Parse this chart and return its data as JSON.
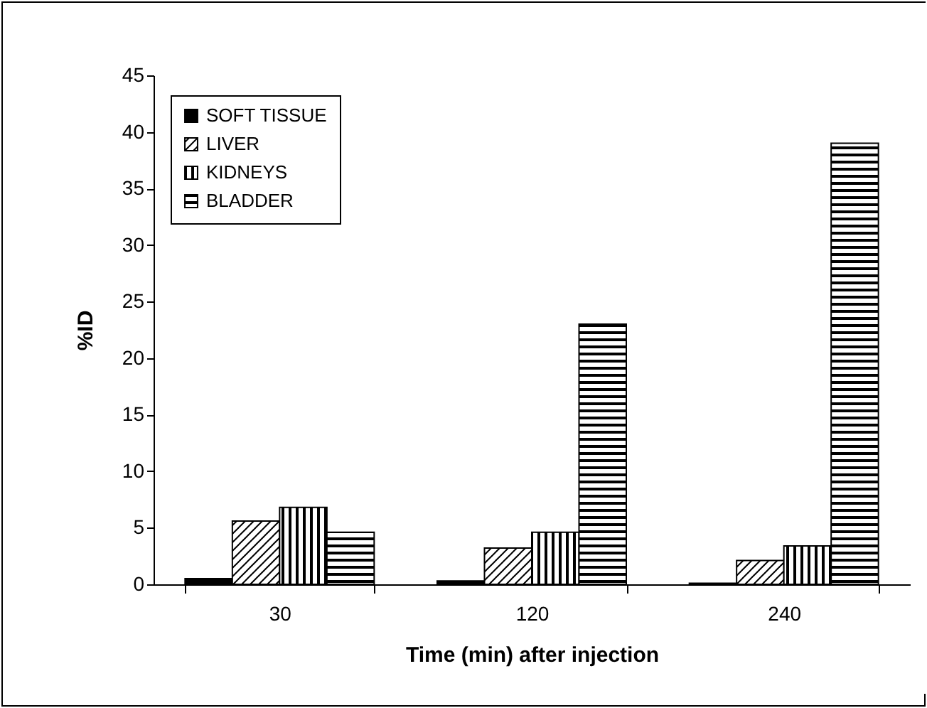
{
  "chart_data": {
    "type": "bar",
    "xlabel": "Time (min) after injection",
    "ylabel": "%ID",
    "categories": [
      "30",
      "120",
      "240"
    ],
    "series": [
      {
        "name": "SOFT TISSUE",
        "color": "#000000",
        "values": [
          0.5,
          0.3,
          0.1
        ]
      },
      {
        "name": "LIVER",
        "color": "#000000",
        "values": [
          5.6,
          3.2,
          2.1
        ]
      },
      {
        "name": "KIDNEYS",
        "color": "#000000",
        "values": [
          6.8,
          4.6,
          3.4
        ]
      },
      {
        "name": "BLADDER",
        "color": "#000000",
        "values": [
          4.6,
          23,
          39
        ]
      }
    ],
    "ylim": [
      0,
      45
    ],
    "yticks": [
      0,
      5,
      10,
      15,
      20,
      25,
      30,
      35,
      40,
      45
    ],
    "grid": false,
    "legend": "top left"
  }
}
